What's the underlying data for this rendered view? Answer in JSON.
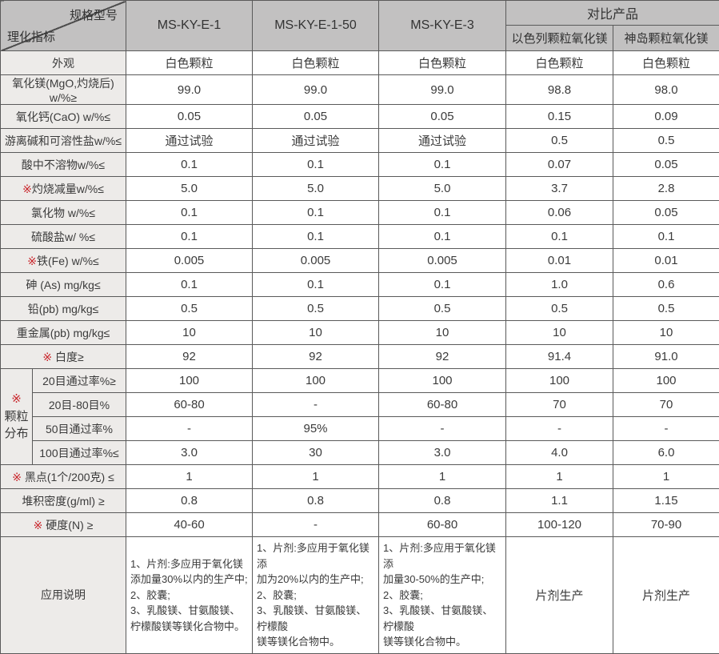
{
  "header": {
    "corner": {
      "top_right": "规格型号",
      "bottom_left": "理化指标"
    },
    "models": [
      "MS-KY-E-1",
      "MS-KY-E-1-50",
      "MS-KY-E-3"
    ],
    "compare_group": "对比产品",
    "compare_models": [
      "以色列颗粒氧化镁",
      "神岛颗粒氧化镁"
    ]
  },
  "colors": {
    "accent_red": "#c9252b",
    "header_bg": "#c2c1c1",
    "label_bg": "#edebe9"
  },
  "table": {
    "star_char": "※",
    "particle_group": {
      "star": "※",
      "label_lines": [
        "颗粒",
        "分布"
      ]
    },
    "rows": [
      {
        "label": "外观",
        "values": [
          "白色颗粒",
          "白色颗粒",
          "白色颗粒",
          "白色颗粒",
          "白色颗粒"
        ]
      },
      {
        "label": "氧化镁(MgO,灼烧后) w/%≥",
        "values": [
          "99.0",
          "99.0",
          "99.0",
          "98.8",
          "98.0"
        ]
      },
      {
        "label": "氧化钙(CaO) w/%≤",
        "values": [
          "0.05",
          "0.05",
          "0.05",
          "0.15",
          "0.09"
        ]
      },
      {
        "label": "游离碱和可溶性盐w/%≤",
        "values": [
          "通过试验",
          "通过试验",
          "通过试验",
          "0.5",
          "0.5"
        ]
      },
      {
        "label": "酸中不溶物w/%≤",
        "values": [
          "0.1",
          "0.1",
          "0.1",
          "0.07",
          "0.05"
        ]
      },
      {
        "star": true,
        "label": "灼烧减量w/%≤",
        "values": [
          "5.0",
          "5.0",
          "5.0",
          "3.7",
          "2.8"
        ]
      },
      {
        "label": "氯化物 w/%≤",
        "values": [
          "0.1",
          "0.1",
          "0.1",
          "0.06",
          "0.05"
        ]
      },
      {
        "label": "硫酸盐w/ %≤",
        "values": [
          "0.1",
          "0.1",
          "0.1",
          "0.1",
          "0.1"
        ]
      },
      {
        "star": true,
        "label": "铁(Fe) w/%≤",
        "values": [
          "0.005",
          "0.005",
          "0.005",
          "0.01",
          "0.01"
        ]
      },
      {
        "label": "砷 (As) mg/kg≤",
        "values": [
          "0.1",
          "0.1",
          "0.1",
          "1.0",
          "0.6"
        ]
      },
      {
        "label": "铅(pb) mg/kg≤",
        "values": [
          "0.5",
          "0.5",
          "0.5",
          "0.5",
          "0.5"
        ]
      },
      {
        "label": "重金属(pb) mg/kg≤",
        "values": [
          "10",
          "10",
          "10",
          "10",
          "10"
        ]
      },
      {
        "star": true,
        "label": " 白度≥",
        "values": [
          "92",
          "92",
          "92",
          "91.4",
          "91.0"
        ]
      },
      {
        "kind": "group",
        "group_start": true,
        "sub_label": "20目通过率%≥",
        "values": [
          "100",
          "100",
          "100",
          "100",
          "100"
        ]
      },
      {
        "kind": "group",
        "sub_label": "20目-80目%",
        "values": [
          "60-80",
          "-",
          "60-80",
          "70",
          "70"
        ]
      },
      {
        "kind": "group",
        "sub_label": "50目通过率%",
        "values": [
          "-",
          "95%",
          "-",
          "-",
          "-"
        ]
      },
      {
        "kind": "group",
        "sub_label": "100目通过率%≤",
        "values": [
          "3.0",
          "30",
          "3.0",
          "4.0",
          "6.0"
        ]
      },
      {
        "star": true,
        "label": " 黑点(1个/200克) ≤",
        "values": [
          "1",
          "1",
          "1",
          "1",
          "1"
        ]
      },
      {
        "label": "堆积密度(g/ml) ≥",
        "values": [
          "0.8",
          "0.8",
          "0.8",
          "1.1",
          "1.15"
        ]
      },
      {
        "star": true,
        "label": " 硬度(N) ≥",
        "values": [
          "40-60",
          "-",
          "60-80",
          "100-120",
          "70-90"
        ]
      },
      {
        "kind": "app",
        "label": "应用说明",
        "values": [
          "1、片剂:多应用于氧化镁\n添加量30%以内的生产中;\n2、胶囊;\n3、乳酸镁、甘氨酸镁、\n柠檬酸镁等镁化合物中。",
          "1、片剂:多应用于氧化镁添\n加为20%以内的生产中;\n2、胶囊;\n3、乳酸镁、甘氨酸镁、柠檬酸\n镁等镁化合物中。",
          "1、片剂:多应用于氧化镁添\n加量30-50%的生产中;\n2、胶囊;\n3、乳酸镁、甘氨酸镁、柠檬酸\n镁等镁化合物中。",
          "片剂生产",
          "片剂生产"
        ]
      }
    ]
  }
}
